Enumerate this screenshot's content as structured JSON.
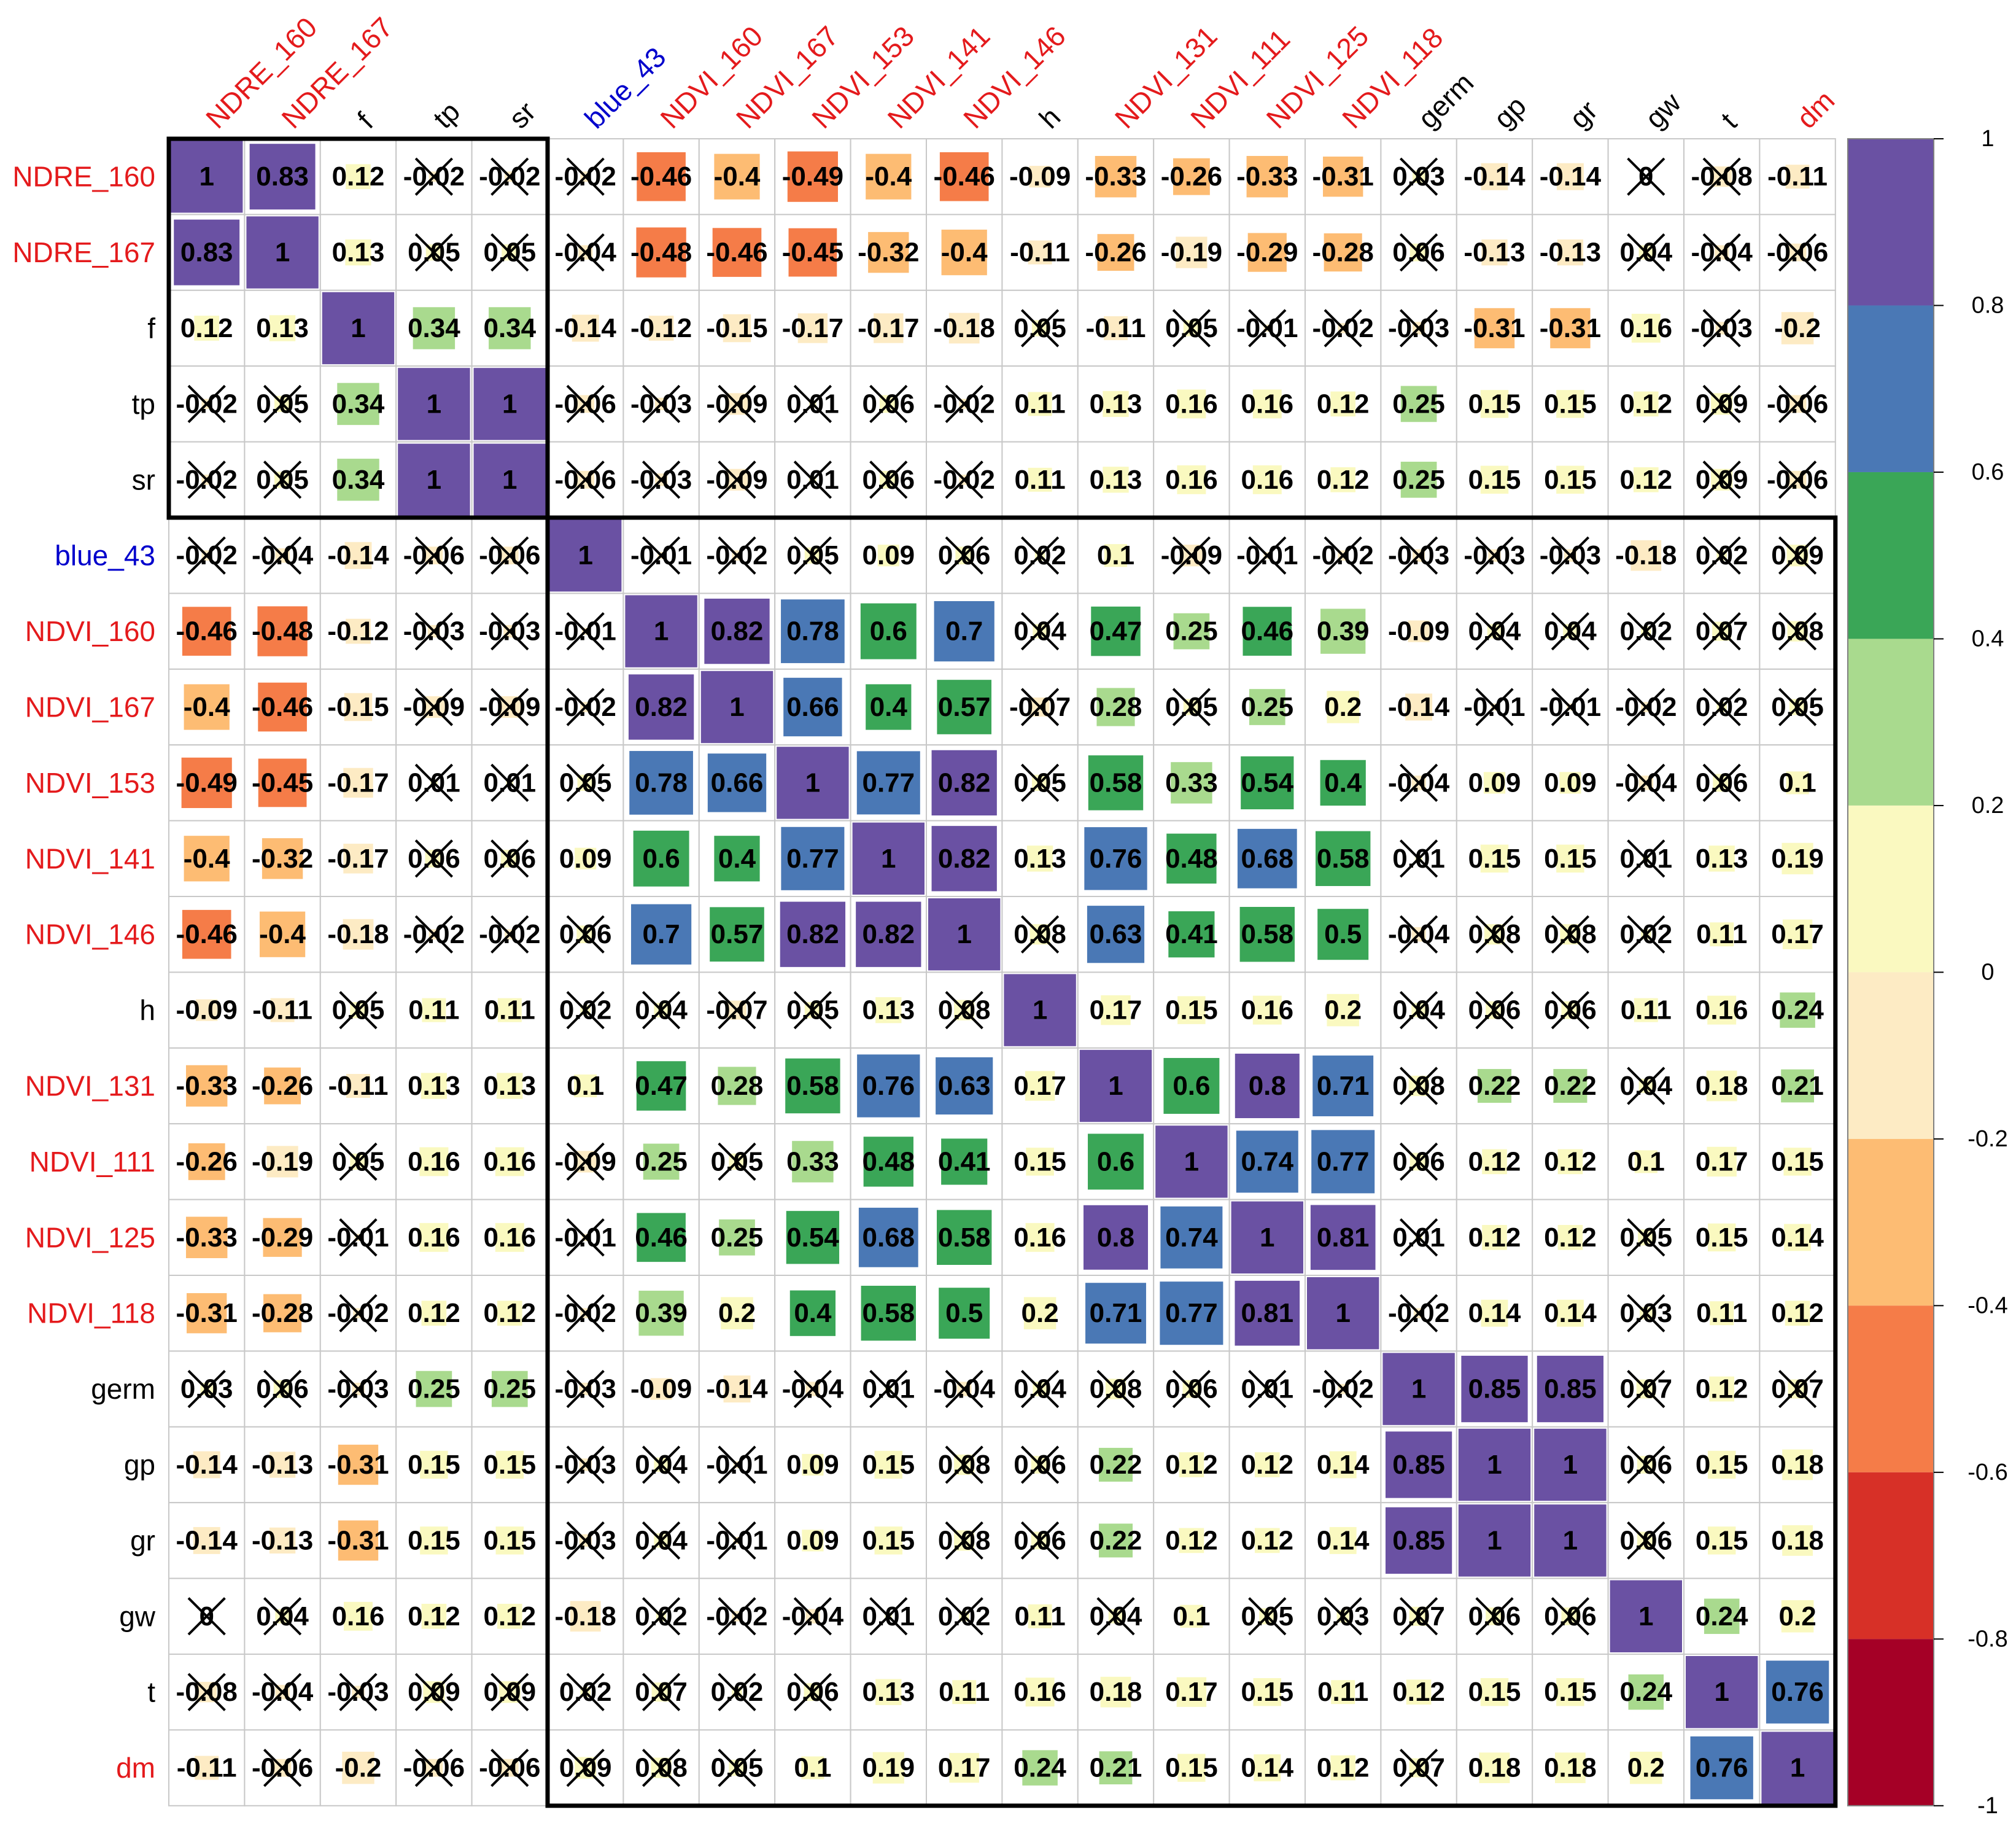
{
  "chart_data": {
    "type": "heatmap",
    "title": "",
    "variables": [
      "NDRE_160",
      "NDRE_167",
      "f",
      "tp",
      "sr",
      "blue_43",
      "NDVI_160",
      "NDVI_167",
      "NDVI_153",
      "NDVI_141",
      "NDVI_146",
      "h",
      "NDVI_131",
      "NDVI_111",
      "NDVI_125",
      "NDVI_118",
      "germ",
      "gp",
      "gr",
      "gw",
      "t",
      "dm"
    ],
    "label_colors": [
      "#E41A1C",
      "#E41A1C",
      "#000000",
      "#000000",
      "#000000",
      "#0000CC",
      "#E41A1C",
      "#E41A1C",
      "#E41A1C",
      "#E41A1C",
      "#E41A1C",
      "#000000",
      "#E41A1C",
      "#E41A1C",
      "#E41A1C",
      "#E41A1C",
      "#000000",
      "#000000",
      "#000000",
      "#000000",
      "#000000",
      "#E41A1C"
    ],
    "value_labels": [
      [
        "1",
        "0.83",
        "0.12",
        "-0.02",
        "-0.02",
        "-0.02",
        "-0.46",
        "-0.4",
        "-0.49",
        "-0.4",
        "-0.46",
        "-0.09",
        "-0.33",
        "-0.26",
        "-0.33",
        "-0.31",
        "0.03",
        "-0.14",
        "-0.14",
        "0",
        "-0.08",
        "-0.11"
      ],
      [
        "0.83",
        "1",
        "0.13",
        "0.05",
        "0.05",
        "-0.04",
        "-0.48",
        "-0.46",
        "-0.45",
        "-0.32",
        "-0.4",
        "-0.11",
        "-0.26",
        "-0.19",
        "-0.29",
        "-0.28",
        "0.06",
        "-0.13",
        "-0.13",
        "0.04",
        "-0.04",
        "-0.06"
      ],
      [
        "0.12",
        "0.13",
        "1",
        "0.34",
        "0.34",
        "-0.14",
        "-0.12",
        "-0.15",
        "-0.17",
        "-0.17",
        "-0.18",
        "0.05",
        "-0.11",
        "0.05",
        "-0.01",
        "-0.02",
        "-0.03",
        "-0.31",
        "-0.31",
        "0.16",
        "-0.03",
        "-0.2"
      ],
      [
        "-0.02",
        "0.05",
        "0.34",
        "1",
        "1",
        "-0.06",
        "-0.03",
        "-0.09",
        "0.01",
        "0.06",
        "-0.02",
        "0.11",
        "0.13",
        "0.16",
        "0.16",
        "0.12",
        "0.25",
        "0.15",
        "0.15",
        "0.12",
        "0.09",
        "-0.06"
      ],
      [
        "-0.02",
        "0.05",
        "0.34",
        "1",
        "1",
        "-0.06",
        "-0.03",
        "-0.09",
        "0.01",
        "0.06",
        "-0.02",
        "0.11",
        "0.13",
        "0.16",
        "0.16",
        "0.12",
        "0.25",
        "0.15",
        "0.15",
        "0.12",
        "0.09",
        "-0.06"
      ],
      [
        "-0.02",
        "-0.04",
        "-0.14",
        "-0.06",
        "-0.06",
        "1",
        "-0.01",
        "-0.02",
        "0.05",
        "0.09",
        "0.06",
        "0.02",
        "0.1",
        "-0.09",
        "-0.01",
        "-0.02",
        "-0.03",
        "-0.03",
        "-0.03",
        "-0.18",
        "0.02",
        "0.09"
      ],
      [
        "-0.46",
        "-0.48",
        "-0.12",
        "-0.03",
        "-0.03",
        "-0.01",
        "1",
        "0.82",
        "0.78",
        "0.6",
        "0.7",
        "0.04",
        "0.47",
        "0.25",
        "0.46",
        "0.39",
        "-0.09",
        "0.04",
        "0.04",
        "0.02",
        "0.07",
        "0.08"
      ],
      [
        "-0.4",
        "-0.46",
        "-0.15",
        "-0.09",
        "-0.09",
        "-0.02",
        "0.82",
        "1",
        "0.66",
        "0.4",
        "0.57",
        "-0.07",
        "0.28",
        "0.05",
        "0.25",
        "0.2",
        "-0.14",
        "-0.01",
        "-0.01",
        "-0.02",
        "0.02",
        "0.05"
      ],
      [
        "-0.49",
        "-0.45",
        "-0.17",
        "0.01",
        "0.01",
        "0.05",
        "0.78",
        "0.66",
        "1",
        "0.77",
        "0.82",
        "0.05",
        "0.58",
        "0.33",
        "0.54",
        "0.4",
        "-0.04",
        "0.09",
        "0.09",
        "-0.04",
        "0.06",
        "0.1"
      ],
      [
        "-0.4",
        "-0.32",
        "-0.17",
        "0.06",
        "0.06",
        "0.09",
        "0.6",
        "0.4",
        "0.77",
        "1",
        "0.82",
        "0.13",
        "0.76",
        "0.48",
        "0.68",
        "0.58",
        "0.01",
        "0.15",
        "0.15",
        "0.01",
        "0.13",
        "0.19"
      ],
      [
        "-0.46",
        "-0.4",
        "-0.18",
        "-0.02",
        "-0.02",
        "0.06",
        "0.7",
        "0.57",
        "0.82",
        "0.82",
        "1",
        "0.08",
        "0.63",
        "0.41",
        "0.58",
        "0.5",
        "-0.04",
        "0.08",
        "0.08",
        "0.02",
        "0.11",
        "0.17"
      ],
      [
        "-0.09",
        "-0.11",
        "0.05",
        "0.11",
        "0.11",
        "0.02",
        "0.04",
        "-0.07",
        "0.05",
        "0.13",
        "0.08",
        "1",
        "0.17",
        "0.15",
        "0.16",
        "0.2",
        "0.04",
        "0.06",
        "0.06",
        "0.11",
        "0.16",
        "0.24"
      ],
      [
        "-0.33",
        "-0.26",
        "-0.11",
        "0.13",
        "0.13",
        "0.1",
        "0.47",
        "0.28",
        "0.58",
        "0.76",
        "0.63",
        "0.17",
        "1",
        "0.6",
        "0.8",
        "0.71",
        "0.08",
        "0.22",
        "0.22",
        "0.04",
        "0.18",
        "0.21"
      ],
      [
        "-0.26",
        "-0.19",
        "0.05",
        "0.16",
        "0.16",
        "-0.09",
        "0.25",
        "0.05",
        "0.33",
        "0.48",
        "0.41",
        "0.15",
        "0.6",
        "1",
        "0.74",
        "0.77",
        "0.06",
        "0.12",
        "0.12",
        "0.1",
        "0.17",
        "0.15"
      ],
      [
        "-0.33",
        "-0.29",
        "-0.01",
        "0.16",
        "0.16",
        "-0.01",
        "0.46",
        "0.25",
        "0.54",
        "0.68",
        "0.58",
        "0.16",
        "0.8",
        "0.74",
        "1",
        "0.81",
        "0.01",
        "0.12",
        "0.12",
        "0.05",
        "0.15",
        "0.14"
      ],
      [
        "-0.31",
        "-0.28",
        "-0.02",
        "0.12",
        "0.12",
        "-0.02",
        "0.39",
        "0.2",
        "0.4",
        "0.58",
        "0.5",
        "0.2",
        "0.71",
        "0.77",
        "0.81",
        "1",
        "-0.02",
        "0.14",
        "0.14",
        "0.03",
        "0.11",
        "0.12"
      ],
      [
        "0.03",
        "0.06",
        "-0.03",
        "0.25",
        "0.25",
        "-0.03",
        "-0.09",
        "-0.14",
        "-0.04",
        "0.01",
        "-0.04",
        "0.04",
        "0.08",
        "0.06",
        "0.01",
        "-0.02",
        "1",
        "0.85",
        "0.85",
        "0.07",
        "0.12",
        "0.07"
      ],
      [
        "-0.14",
        "-0.13",
        "-0.31",
        "0.15",
        "0.15",
        "-0.03",
        "0.04",
        "-0.01",
        "0.09",
        "0.15",
        "0.08",
        "0.06",
        "0.22",
        "0.12",
        "0.12",
        "0.14",
        "0.85",
        "1",
        "1",
        "0.06",
        "0.15",
        "0.18"
      ],
      [
        "-0.14",
        "-0.13",
        "-0.31",
        "0.15",
        "0.15",
        "-0.03",
        "0.04",
        "-0.01",
        "0.09",
        "0.15",
        "0.08",
        "0.06",
        "0.22",
        "0.12",
        "0.12",
        "0.14",
        "0.85",
        "1",
        "1",
        "0.06",
        "0.15",
        "0.18"
      ],
      [
        "0",
        "0.04",
        "0.16",
        "0.12",
        "0.12",
        "-0.18",
        "0.02",
        "-0.02",
        "-0.04",
        "0.01",
        "0.02",
        "0.11",
        "0.04",
        "0.1",
        "0.05",
        "0.03",
        "0.07",
        "0.06",
        "0.06",
        "1",
        "0.24",
        "0.2"
      ],
      [
        "-0.08",
        "-0.04",
        "-0.03",
        "0.09",
        "0.09",
        "0.02",
        "0.07",
        "0.02",
        "0.06",
        "0.13",
        "0.11",
        "0.16",
        "0.18",
        "0.17",
        "0.15",
        "0.11",
        "0.12",
        "0.15",
        "0.15",
        "0.24",
        "1",
        "0.76"
      ],
      [
        "-0.11",
        "-0.06",
        "-0.2",
        "-0.06",
        "-0.06",
        "0.09",
        "0.08",
        "0.05",
        "0.1",
        "0.19",
        "0.17",
        "0.24",
        "0.21",
        "0.15",
        "0.14",
        "0.12",
        "0.07",
        "0.18",
        "0.18",
        "0.2",
        "0.76",
        "1"
      ]
    ],
    "crossed": [
      [
        0,
        0,
        0,
        1,
        1,
        1,
        0,
        0,
        0,
        0,
        0,
        0,
        0,
        0,
        0,
        0,
        1,
        0,
        0,
        1,
        1,
        0
      ],
      [
        0,
        0,
        0,
        1,
        1,
        1,
        0,
        0,
        0,
        0,
        0,
        0,
        0,
        0,
        0,
        0,
        1,
        0,
        0,
        1,
        1,
        1
      ],
      [
        0,
        0,
        0,
        0,
        0,
        0,
        0,
        0,
        0,
        0,
        0,
        1,
        0,
        1,
        1,
        1,
        1,
        0,
        0,
        0,
        1,
        0
      ],
      [
        1,
        1,
        0,
        0,
        0,
        1,
        1,
        1,
        1,
        1,
        1,
        0,
        0,
        0,
        0,
        0,
        0,
        0,
        0,
        0,
        1,
        1
      ],
      [
        1,
        1,
        0,
        0,
        0,
        1,
        1,
        1,
        1,
        1,
        1,
        0,
        0,
        0,
        0,
        0,
        0,
        0,
        0,
        0,
        1,
        1
      ],
      [
        1,
        1,
        0,
        1,
        1,
        0,
        1,
        1,
        1,
        0,
        1,
        1,
        0,
        1,
        1,
        1,
        1,
        1,
        1,
        0,
        1,
        1
      ],
      [
        0,
        0,
        0,
        1,
        1,
        1,
        0,
        0,
        0,
        0,
        0,
        1,
        0,
        0,
        0,
        0,
        0,
        1,
        1,
        1,
        1,
        1
      ],
      [
        0,
        0,
        0,
        1,
        1,
        1,
        0,
        0,
        0,
        0,
        0,
        1,
        0,
        1,
        0,
        0,
        0,
        1,
        1,
        1,
        1,
        1
      ],
      [
        0,
        0,
        0,
        1,
        1,
        1,
        0,
        0,
        0,
        0,
        0,
        1,
        0,
        0,
        0,
        0,
        1,
        0,
        0,
        1,
        1,
        0
      ],
      [
        0,
        0,
        0,
        1,
        1,
        0,
        0,
        0,
        0,
        0,
        0,
        0,
        0,
        0,
        0,
        0,
        1,
        0,
        0,
        1,
        0,
        0
      ],
      [
        0,
        0,
        0,
        1,
        1,
        1,
        0,
        0,
        0,
        0,
        0,
        1,
        0,
        0,
        0,
        0,
        1,
        1,
        1,
        1,
        0,
        0
      ],
      [
        0,
        0,
        1,
        0,
        0,
        1,
        1,
        1,
        1,
        0,
        1,
        0,
        0,
        0,
        0,
        0,
        1,
        1,
        1,
        0,
        0,
        0
      ],
      [
        0,
        0,
        0,
        0,
        0,
        0,
        0,
        0,
        0,
        0,
        0,
        0,
        0,
        0,
        0,
        0,
        1,
        0,
        0,
        1,
        0,
        0
      ],
      [
        0,
        0,
        1,
        0,
        0,
        1,
        0,
        1,
        0,
        0,
        0,
        0,
        0,
        0,
        0,
        0,
        1,
        0,
        0,
        0,
        0,
        0
      ],
      [
        0,
        0,
        1,
        0,
        0,
        1,
        0,
        0,
        0,
        0,
        0,
        0,
        0,
        0,
        0,
        0,
        1,
        0,
        0,
        1,
        0,
        0
      ],
      [
        0,
        0,
        1,
        0,
        0,
        1,
        0,
        0,
        0,
        0,
        0,
        0,
        0,
        0,
        0,
        0,
        1,
        0,
        0,
        1,
        0,
        0
      ],
      [
        1,
        1,
        1,
        0,
        0,
        1,
        0,
        0,
        1,
        1,
        1,
        1,
        1,
        1,
        1,
        1,
        0,
        0,
        0,
        1,
        0,
        1
      ],
      [
        0,
        0,
        0,
        0,
        0,
        1,
        1,
        1,
        0,
        0,
        1,
        1,
        0,
        0,
        0,
        0,
        0,
        0,
        0,
        1,
        0,
        0
      ],
      [
        0,
        0,
        0,
        0,
        0,
        1,
        1,
        1,
        0,
        0,
        1,
        1,
        0,
        0,
        0,
        0,
        0,
        0,
        0,
        1,
        0,
        0
      ],
      [
        1,
        1,
        0,
        0,
        0,
        0,
        1,
        1,
        1,
        1,
        1,
        0,
        1,
        0,
        1,
        1,
        1,
        1,
        1,
        0,
        0,
        0
      ],
      [
        1,
        1,
        1,
        1,
        1,
        1,
        1,
        1,
        1,
        0,
        0,
        0,
        0,
        0,
        0,
        0,
        0,
        0,
        0,
        0,
        0,
        0
      ],
      [
        0,
        1,
        0,
        1,
        1,
        1,
        1,
        1,
        0,
        0,
        0,
        0,
        0,
        0,
        0,
        0,
        1,
        0,
        0,
        0,
        0,
        0
      ]
    ],
    "clusters": [
      {
        "start": 0,
        "end": 4
      },
      {
        "start": 5,
        "end": 21
      }
    ],
    "colorbar": {
      "range": [
        -1,
        1
      ],
      "tick_labels": [
        "1",
        "0.8",
        "0.6",
        "0.4",
        "0.2",
        "0",
        "-0.2",
        "-0.4",
        "-0.6",
        "-0.8",
        "-1"
      ],
      "bins_top_to_bottom": [
        "#6A51A3",
        "#4A78B5",
        "#3AA657",
        "#A9DA8E",
        "#FAF9C0",
        "#FDEBC4",
        "#FDBC73",
        "#F57C48",
        "#D73027",
        "#A50026"
      ]
    }
  }
}
